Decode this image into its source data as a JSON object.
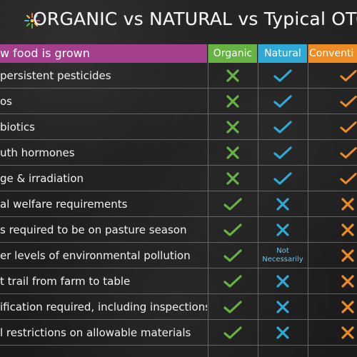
{
  "title": "ORGANIC vs NATURAL vs Typical OTC",
  "header": {
    "main": "w food is grown",
    "organic": "Organic",
    "natural": "Natural",
    "conventional": "Conventi"
  },
  "colors": {
    "background": "#1f1f1f",
    "header_main": "#a43f8e",
    "organic": "#66b344",
    "natural": "#2fa9d6",
    "conventional": "#ef8b25",
    "grid": "#b446a0",
    "organic_x": "#66b344",
    "organic_check": "#66b344",
    "natural_check": "#2fa9d6",
    "natural_x": "#2fa9d6",
    "conventional_mark": "#ef8b25"
  },
  "rows": [
    {
      "label": "persistent pesticides",
      "organic": "x",
      "natural": "check",
      "conventional": "check"
    },
    {
      "label": "os",
      "organic": "x",
      "natural": "check",
      "conventional": "check"
    },
    {
      "label": "biotics",
      "organic": "x",
      "natural": "check",
      "conventional": "check"
    },
    {
      "label": "uth hormones",
      "organic": "x",
      "natural": "check",
      "conventional": "check"
    },
    {
      "label": "ge & irradiation",
      "organic": "x",
      "natural": "check",
      "conventional": "check"
    },
    {
      "label": "al welfare requirements",
      "organic": "check",
      "natural": "x",
      "conventional": "x"
    },
    {
      "label": "s required to be on pasture season",
      "organic": "check",
      "natural": "x",
      "conventional": "x"
    },
    {
      "label": "er levels of environmental pollution",
      "organic": "check",
      "natural": "note",
      "natural_note": "Not Necessarily",
      "conventional": "x"
    },
    {
      "label": "t trail from farm to table",
      "organic": "check",
      "natural": "x",
      "conventional": "x"
    },
    {
      "label": "ification required, including inspections",
      "organic": "check",
      "natural": "x",
      "conventional": "x"
    },
    {
      "label": "l restrictions on allowable materials",
      "organic": "check",
      "natural": "x",
      "conventional": "x"
    }
  ]
}
